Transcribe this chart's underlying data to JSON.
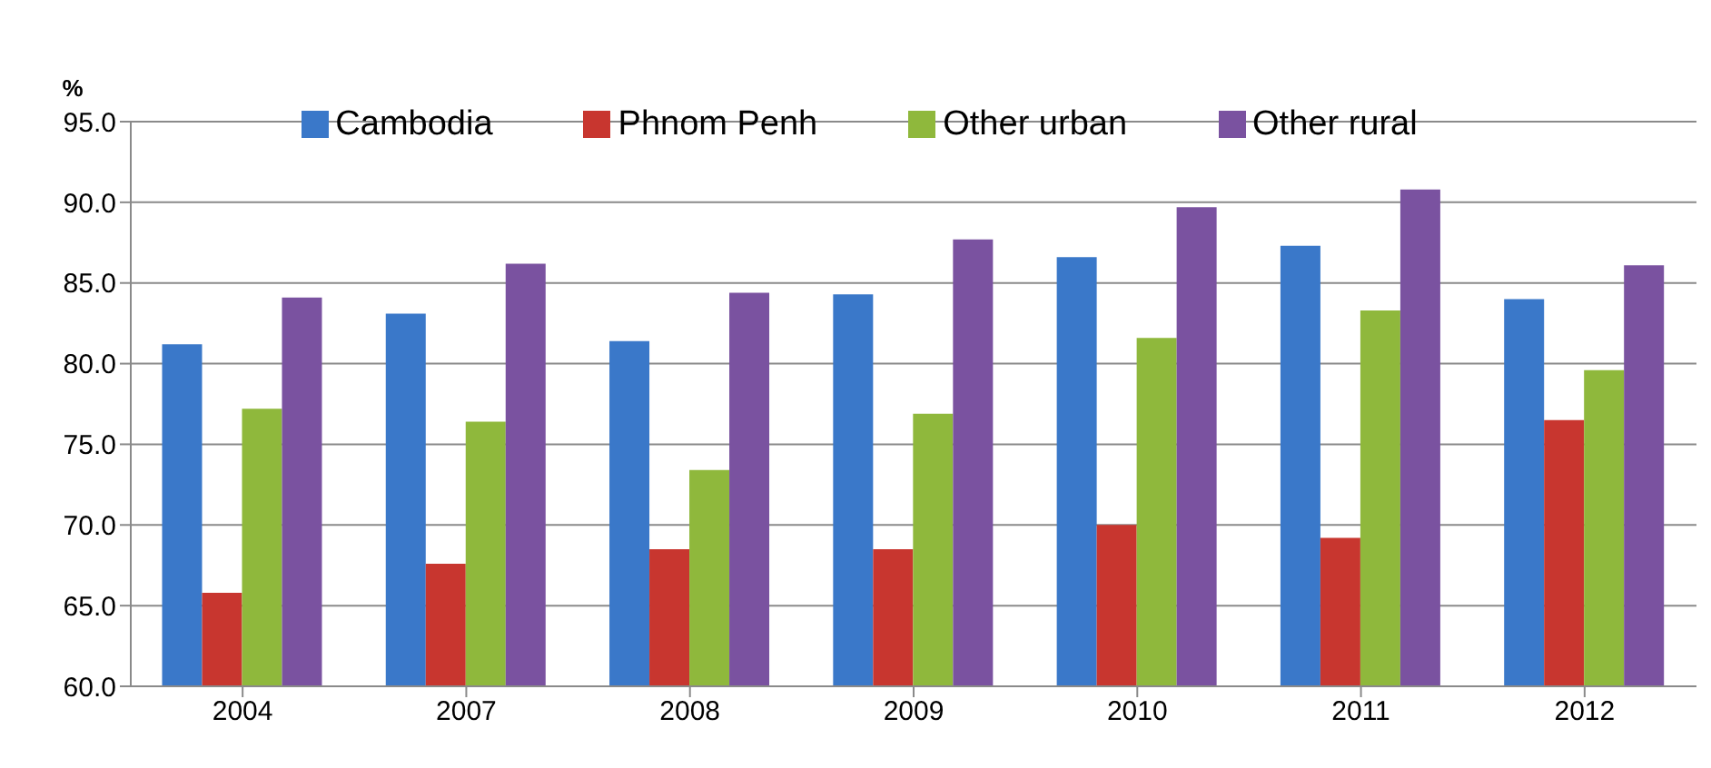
{
  "chart_data": {
    "type": "bar",
    "ylabel": "%",
    "categories": [
      "2004",
      "2007",
      "2008",
      "2009",
      "2010",
      "2011",
      "2012"
    ],
    "series": [
      {
        "name": "Cambodia",
        "color": "#3a78c9",
        "values": [
          81.2,
          83.1,
          81.4,
          84.3,
          86.6,
          87.3,
          84.0
        ]
      },
      {
        "name": "Phnom Penh",
        "color": "#c8362f",
        "values": [
          65.8,
          67.6,
          68.5,
          68.5,
          70.0,
          69.2,
          76.5
        ]
      },
      {
        "name": "Other urban",
        "color": "#8fb83c",
        "values": [
          77.2,
          76.4,
          73.4,
          76.9,
          81.6,
          83.3,
          79.6
        ]
      },
      {
        "name": "Other rural",
        "color": "#7a52a0",
        "values": [
          84.1,
          86.2,
          84.4,
          87.7,
          89.7,
          90.8,
          86.1
        ]
      }
    ],
    "ylim": [
      60,
      95
    ],
    "yticks": [
      {
        "value": 60,
        "label": "60.0"
      },
      {
        "value": 65,
        "label": "65.0"
      },
      {
        "value": 70,
        "label": "70.0"
      },
      {
        "value": 75,
        "label": "75.0"
      },
      {
        "value": 80,
        "label": "80.0"
      },
      {
        "value": 85,
        "label": "85.0"
      },
      {
        "value": 90,
        "label": "90.0"
      },
      {
        "value": 95,
        "label": "95.0"
      }
    ],
    "grid": "y",
    "legend": "top"
  }
}
